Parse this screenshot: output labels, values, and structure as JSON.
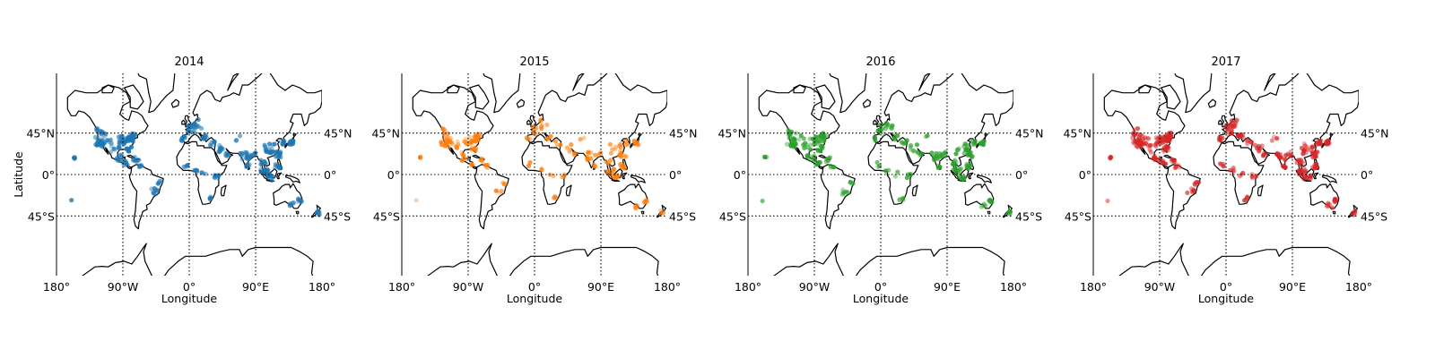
{
  "figure": {
    "maps": [
      {
        "title": "2014",
        "color": "#1f77b4",
        "show_ylabel": true
      },
      {
        "title": "2015",
        "color": "#ff7f0e",
        "show_ylabel": false
      },
      {
        "title": "2016",
        "color": "#2ca02c",
        "show_ylabel": false
      },
      {
        "title": "2017",
        "color": "#d62728",
        "show_ylabel": false
      }
    ],
    "xlabel": "Longitude",
    "ylabel": "Latitude",
    "lon_ticks": [
      "180°",
      "90°W",
      "0°",
      "90°E",
      "180°"
    ],
    "lat_ticks_left": [
      "45°N",
      "0°",
      "45°S"
    ],
    "lat_ticks_right": [
      "45°N",
      "0°",
      "45°S"
    ],
    "projection": "mercator",
    "gridline_style": "dotted",
    "point_clusters": [
      {
        "region": "western North America",
        "lon": -120,
        "lat": 37
      },
      {
        "region": "eastern United States",
        "lon": -82,
        "lat": 38
      },
      {
        "region": "Central America",
        "lon": -90,
        "lat": 17
      },
      {
        "region": "Caribbean",
        "lon": -70,
        "lat": 18
      },
      {
        "region": "Hawaii",
        "lon": -156,
        "lat": 20
      },
      {
        "region": "South America coast",
        "lon": -45,
        "lat": -20
      },
      {
        "region": "Europe",
        "lon": 5,
        "lat": 48
      },
      {
        "region": "Middle East",
        "lon": 45,
        "lat": 30
      },
      {
        "region": "India",
        "lon": 78,
        "lat": 20
      },
      {
        "region": "East Asia",
        "lon": 118,
        "lat": 32
      },
      {
        "region": "Japan",
        "lon": 138,
        "lat": 36
      },
      {
        "region": "Southeast Asia",
        "lon": 105,
        "lat": 5
      },
      {
        "region": "Australia east",
        "lon": 150,
        "lat": -30
      },
      {
        "region": "New Zealand",
        "lon": 172,
        "lat": -42
      },
      {
        "region": "East Africa",
        "lon": 38,
        "lat": -2
      },
      {
        "region": "South Africa",
        "lon": 25,
        "lat": -30
      }
    ]
  }
}
